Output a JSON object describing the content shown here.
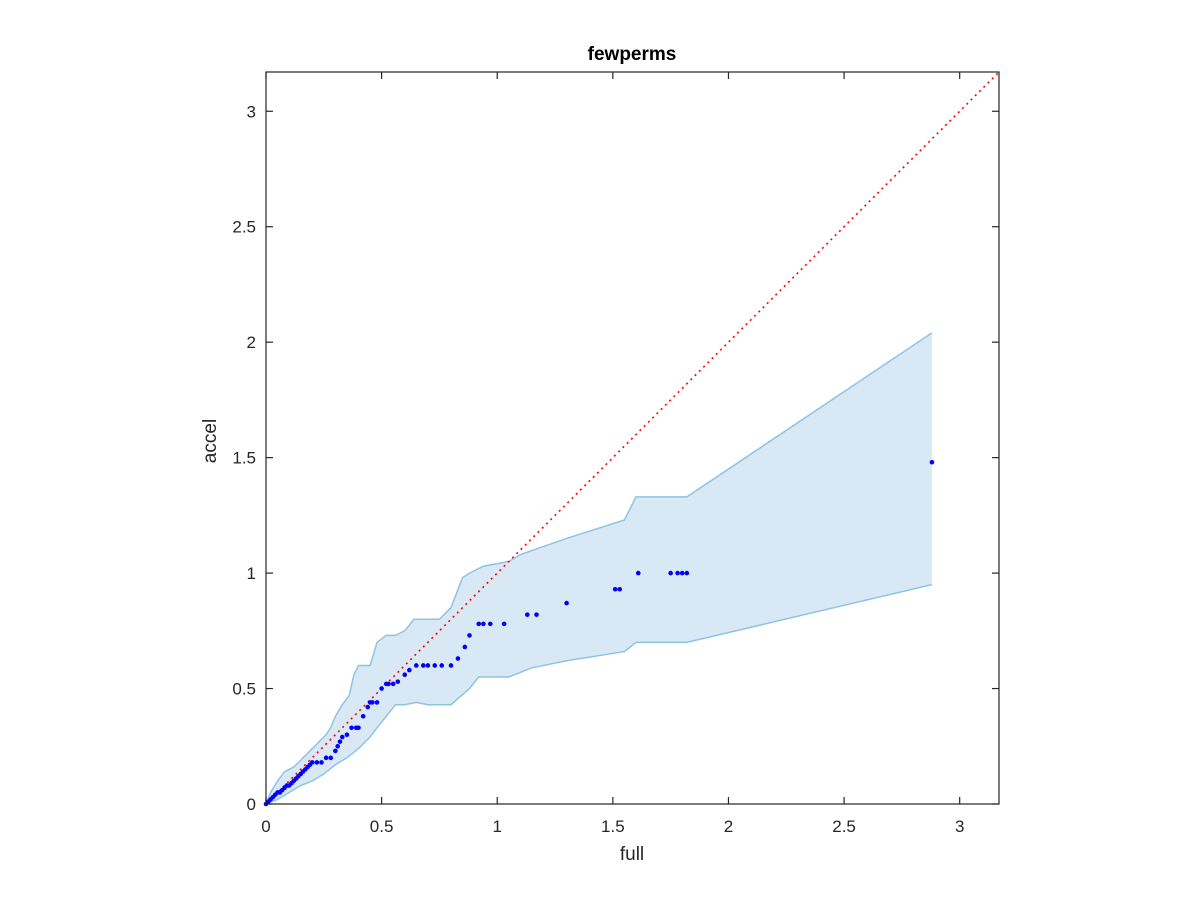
{
  "chart_data": {
    "type": "scatter",
    "title": "fewperms",
    "xlabel": "full",
    "ylabel": "accel",
    "xlim": [
      0,
      3.17
    ],
    "ylim": [
      0,
      3.17
    ],
    "xticks": [
      "0",
      "0.5",
      "1",
      "1.5",
      "2",
      "2.5",
      "3"
    ],
    "yticks": [
      "0",
      "0.5",
      "1",
      "1.5",
      "2",
      "2.5",
      "3"
    ],
    "grid": false,
    "legend": "none",
    "colors": {
      "points": "#0000ff",
      "reference_line": "#ff0000",
      "band_fill": "#d9e8f5",
      "band_edge": "#8ec4e2",
      "axes": "#262626"
    },
    "reference_line": {
      "style": "dotted",
      "x": [
        0,
        3.17
      ],
      "y": [
        0,
        3.17
      ]
    },
    "band": {
      "upper": [
        [
          0,
          0
        ],
        [
          0.02,
          0.05
        ],
        [
          0.05,
          0.1
        ],
        [
          0.08,
          0.14
        ],
        [
          0.12,
          0.16
        ],
        [
          0.15,
          0.19
        ],
        [
          0.18,
          0.22
        ],
        [
          0.22,
          0.26
        ],
        [
          0.26,
          0.3
        ],
        [
          0.28,
          0.33
        ],
        [
          0.3,
          0.38
        ],
        [
          0.33,
          0.43
        ],
        [
          0.36,
          0.47
        ],
        [
          0.38,
          0.56
        ],
        [
          0.4,
          0.6
        ],
        [
          0.45,
          0.6
        ],
        [
          0.48,
          0.7
        ],
        [
          0.52,
          0.73
        ],
        [
          0.56,
          0.73
        ],
        [
          0.6,
          0.75
        ],
        [
          0.64,
          0.8
        ],
        [
          0.75,
          0.8
        ],
        [
          0.8,
          0.85
        ],
        [
          0.85,
          0.98
        ],
        [
          0.88,
          1.0
        ],
        [
          0.94,
          1.03
        ],
        [
          1.05,
          1.05
        ],
        [
          1.1,
          1.08
        ],
        [
          1.3,
          1.15
        ],
        [
          1.55,
          1.23
        ],
        [
          1.6,
          1.33
        ],
        [
          1.82,
          1.33
        ],
        [
          2.88,
          2.04
        ]
      ],
      "lower": [
        [
          0,
          0
        ],
        [
          0.05,
          0.02
        ],
        [
          0.1,
          0.05
        ],
        [
          0.15,
          0.08
        ],
        [
          0.2,
          0.1
        ],
        [
          0.25,
          0.13
        ],
        [
          0.3,
          0.17
        ],
        [
          0.35,
          0.2
        ],
        [
          0.4,
          0.24
        ],
        [
          0.45,
          0.29
        ],
        [
          0.48,
          0.33
        ],
        [
          0.52,
          0.38
        ],
        [
          0.56,
          0.43
        ],
        [
          0.6,
          0.43
        ],
        [
          0.65,
          0.44
        ],
        [
          0.7,
          0.43
        ],
        [
          0.8,
          0.43
        ],
        [
          0.88,
          0.5
        ],
        [
          0.92,
          0.55
        ],
        [
          1.05,
          0.55
        ],
        [
          1.15,
          0.59
        ],
        [
          1.3,
          0.62
        ],
        [
          1.55,
          0.66
        ],
        [
          1.6,
          0.7
        ],
        [
          1.82,
          0.7
        ],
        [
          2.88,
          0.95
        ]
      ]
    },
    "points": {
      "x": [
        0.0,
        0.01,
        0.02,
        0.03,
        0.04,
        0.05,
        0.06,
        0.07,
        0.08,
        0.09,
        0.1,
        0.11,
        0.12,
        0.13,
        0.14,
        0.15,
        0.16,
        0.17,
        0.18,
        0.19,
        0.2,
        0.22,
        0.24,
        0.26,
        0.28,
        0.3,
        0.31,
        0.32,
        0.33,
        0.35,
        0.37,
        0.39,
        0.4,
        0.42,
        0.44,
        0.45,
        0.46,
        0.48,
        0.5,
        0.52,
        0.53,
        0.55,
        0.57,
        0.6,
        0.62,
        0.65,
        0.68,
        0.7,
        0.73,
        0.76,
        0.8,
        0.83,
        0.86,
        0.88,
        0.92,
        0.94,
        0.97,
        1.03,
        1.13,
        1.17,
        1.3,
        1.51,
        1.53,
        1.61,
        1.75,
        1.78,
        1.8,
        1.82,
        2.88
      ],
      "y": [
        0.0,
        0.01,
        0.02,
        0.03,
        0.04,
        0.05,
        0.05,
        0.06,
        0.07,
        0.08,
        0.08,
        0.09,
        0.1,
        0.11,
        0.12,
        0.13,
        0.14,
        0.15,
        0.16,
        0.17,
        0.18,
        0.18,
        0.18,
        0.2,
        0.2,
        0.23,
        0.25,
        0.27,
        0.29,
        0.3,
        0.33,
        0.33,
        0.33,
        0.38,
        0.42,
        0.44,
        0.44,
        0.44,
        0.5,
        0.52,
        0.52,
        0.52,
        0.53,
        0.56,
        0.58,
        0.6,
        0.6,
        0.6,
        0.6,
        0.6,
        0.6,
        0.63,
        0.68,
        0.73,
        0.78,
        0.78,
        0.78,
        0.78,
        0.82,
        0.82,
        0.87,
        0.93,
        0.93,
        1.0,
        1.0,
        1.0,
        1.0,
        1.0,
        1.48
      ]
    }
  }
}
